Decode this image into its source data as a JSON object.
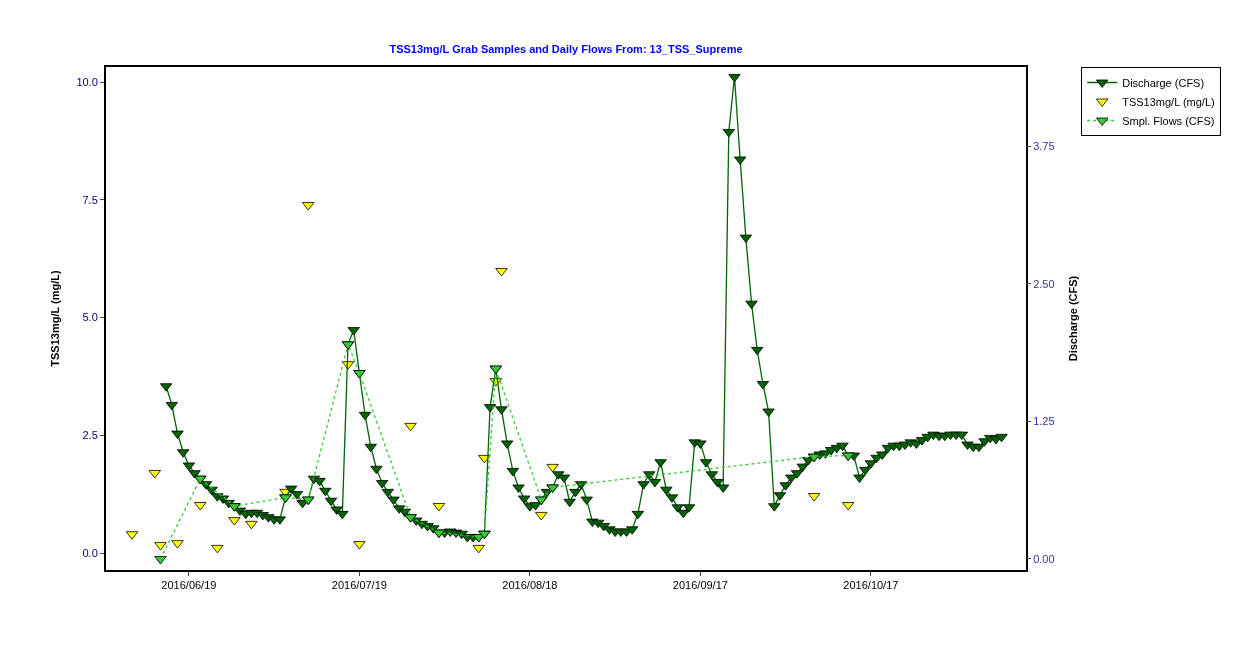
{
  "chart_data": {
    "type": "line",
    "title": "TSS13mg/L Grab Samples and Daily Flows From: 13_TSS_Supreme",
    "ylabel": "TSS13mg/L (mg/L)",
    "y2label": "Discharge (CFS)",
    "xlim": [
      "2016-06-04T10:00",
      "2016-11-13T07:00"
    ],
    "xticks": [
      {
        "value": "2016-06-19",
        "label": "2016/06/19"
      },
      {
        "value": "2016-07-19",
        "label": "2016/07/19"
      },
      {
        "value": "2016-08-18",
        "label": "2016/08/18"
      },
      {
        "value": "2016-09-17",
        "label": "2016/09/17"
      },
      {
        "value": "2016-10-17",
        "label": "2016/10/17"
      }
    ],
    "ylim": [
      -0.36,
      10.32
    ],
    "yticks": [
      {
        "value": 0,
        "label": "0.0"
      },
      {
        "value": 2.5,
        "label": "2.5"
      },
      {
        "value": 5,
        "label": "5.0"
      },
      {
        "value": 7.5,
        "label": "7.5"
      },
      {
        "value": 10,
        "label": "10.0"
      }
    ],
    "y2lim": [
      -0.1,
      4.47
    ],
    "y2ticks": [
      {
        "value": 0,
        "label": "0.00"
      },
      {
        "value": 1.25,
        "label": "1.25"
      },
      {
        "value": 2.5,
        "label": "2.50"
      },
      {
        "value": 3.75,
        "label": "3.75"
      }
    ],
    "legend": "top right",
    "marker": "triangle",
    "series": [
      {
        "name": "Discharge (CFS)",
        "axis": "y2",
        "color": "#006400",
        "line_style": "solid",
        "x": [
          "2016-06-15",
          "2016-06-16",
          "2016-06-17",
          "2016-06-18",
          "2016-06-19",
          "2016-06-20",
          "2016-06-21",
          "2016-06-22",
          "2016-06-23",
          "2016-06-24",
          "2016-06-25",
          "2016-06-26",
          "2016-06-27",
          "2016-06-28",
          "2016-06-29",
          "2016-06-30",
          "2016-07-01",
          "2016-07-02",
          "2016-07-03",
          "2016-07-04",
          "2016-07-05",
          "2016-07-06",
          "2016-07-07",
          "2016-07-08",
          "2016-07-09",
          "2016-07-10",
          "2016-07-11",
          "2016-07-12",
          "2016-07-13",
          "2016-07-14",
          "2016-07-15",
          "2016-07-16",
          "2016-07-17",
          "2016-07-18",
          "2016-07-19",
          "2016-07-20",
          "2016-07-21",
          "2016-07-22",
          "2016-07-23",
          "2016-07-24",
          "2016-07-25",
          "2016-07-26",
          "2016-07-27",
          "2016-07-28",
          "2016-07-29",
          "2016-07-30",
          "2016-07-31",
          "2016-08-01",
          "2016-08-02",
          "2016-08-03",
          "2016-08-04",
          "2016-08-05",
          "2016-08-06",
          "2016-08-07",
          "2016-08-08",
          "2016-08-09",
          "2016-08-10",
          "2016-08-11",
          "2016-08-12",
          "2016-08-13",
          "2016-08-14",
          "2016-08-15",
          "2016-08-16",
          "2016-08-17",
          "2016-08-18",
          "2016-08-19",
          "2016-08-20",
          "2016-08-21",
          "2016-08-22",
          "2016-08-23",
          "2016-08-24",
          "2016-08-25",
          "2016-08-26",
          "2016-08-27",
          "2016-08-28",
          "2016-08-29",
          "2016-08-30",
          "2016-08-31",
          "2016-09-01",
          "2016-09-02",
          "2016-09-03",
          "2016-09-04",
          "2016-09-05",
          "2016-09-06",
          "2016-09-07",
          "2016-09-08",
          "2016-09-09",
          "2016-09-10",
          "2016-09-11",
          "2016-09-12",
          "2016-09-13",
          "2016-09-14",
          "2016-09-15",
          "2016-09-16",
          "2016-09-17",
          "2016-09-18",
          "2016-09-19",
          "2016-09-20",
          "2016-09-21",
          "2016-09-22",
          "2016-09-23",
          "2016-09-24",
          "2016-09-25",
          "2016-09-26",
          "2016-09-27",
          "2016-09-28",
          "2016-09-29",
          "2016-09-30",
          "2016-10-01",
          "2016-10-02",
          "2016-10-03",
          "2016-10-04",
          "2016-10-05",
          "2016-10-06",
          "2016-10-07",
          "2016-10-08",
          "2016-10-09",
          "2016-10-10",
          "2016-10-11",
          "2016-10-12",
          "2016-10-13",
          "2016-10-14",
          "2016-10-15",
          "2016-10-16",
          "2016-10-17",
          "2016-10-18",
          "2016-10-19",
          "2016-10-20",
          "2016-10-21",
          "2016-10-22",
          "2016-10-23",
          "2016-10-24",
          "2016-10-25",
          "2016-10-26",
          "2016-10-27",
          "2016-10-28",
          "2016-10-29",
          "2016-10-30",
          "2016-10-31",
          "2016-11-01",
          "2016-11-02",
          "2016-11-03",
          "2016-11-04",
          "2016-11-05",
          "2016-11-06",
          "2016-11-07",
          "2016-11-08",
          "2016-11-09"
        ],
        "values": [
          1.57,
          1.4,
          1.14,
          0.97,
          0.85,
          0.78,
          0.73,
          0.68,
          0.63,
          0.57,
          0.55,
          0.51,
          0.48,
          0.44,
          0.41,
          0.42,
          0.42,
          0.4,
          0.38,
          0.36,
          0.36,
          0.56,
          0.64,
          0.59,
          0.51,
          0.54,
          0.73,
          0.71,
          0.62,
          0.53,
          0.45,
          0.41,
          1.95,
          2.08,
          1.69,
          1.31,
          1.02,
          0.82,
          0.69,
          0.61,
          0.54,
          0.46,
          0.43,
          0.38,
          0.35,
          0.32,
          0.3,
          0.28,
          0.24,
          0.24,
          0.25,
          0.24,
          0.23,
          0.2,
          0.2,
          0.2,
          0.23,
          1.38,
          1.73,
          1.36,
          1.05,
          0.8,
          0.65,
          0.55,
          0.48,
          0.49,
          0.54,
          0.61,
          0.65,
          0.77,
          0.74,
          0.52,
          0.61,
          0.68,
          0.54,
          0.34,
          0.33,
          0.3,
          0.27,
          0.25,
          0.25,
          0.25,
          0.27,
          0.41,
          0.68,
          0.77,
          0.7,
          0.88,
          0.63,
          0.56,
          0.47,
          0.42,
          0.47,
          1.06,
          1.05,
          0.88,
          0.77,
          0.7,
          0.65,
          3.88,
          4.38,
          3.63,
          2.92,
          2.32,
          1.9,
          1.59,
          1.34,
          0.48,
          0.58,
          0.67,
          0.74,
          0.78,
          0.84,
          0.9,
          0.93,
          0.95,
          0.96,
          0.99,
          1.01,
          1.03,
          0.94,
          0.94,
          0.74,
          0.81,
          0.87,
          0.92,
          0.95,
          1.01,
          1.03,
          1.03,
          1.04,
          1.06,
          1.05,
          1.08,
          1.11,
          1.13,
          1.12,
          1.12,
          1.13,
          1.13,
          1.13,
          1.04,
          1.02,
          1.02,
          1.07,
          1.1,
          1.09,
          1.11
        ]
      },
      {
        "name": "TSS13mg/L (mg/L)",
        "type": "scatter",
        "axis": "y",
        "color": "#ffff00",
        "x": [
          "2016-06-09",
          "2016-06-13",
          "2016-06-14",
          "2016-06-17",
          "2016-06-21",
          "2016-06-24",
          "2016-06-27",
          "2016-06-30",
          "2016-07-06",
          "2016-07-10",
          "2016-07-17",
          "2016-07-19",
          "2016-07-28",
          "2016-08-02",
          "2016-08-09",
          "2016-08-10",
          "2016-08-12",
          "2016-08-13",
          "2016-08-20",
          "2016-08-22",
          "2016-10-07",
          "2016-10-13"
        ],
        "values": [
          0.4,
          1.7,
          0.17,
          0.21,
          1.02,
          0.11,
          0.7,
          0.62,
          1.3,
          7.39,
          4.01,
          0.19,
          2.7,
          1.0,
          0.11,
          2.02,
          3.65,
          5.99,
          0.81,
          1.83,
          1.21,
          1.02
        ]
      },
      {
        "name": "Smpl. Flows (CFS)",
        "axis": "y2",
        "color": "#33cc33",
        "line_style": "dotted",
        "x": [
          "2016-06-14",
          "2016-06-21",
          "2016-06-27",
          "2016-07-06",
          "2016-07-10",
          "2016-07-17",
          "2016-07-19",
          "2016-07-28",
          "2016-08-02",
          "2016-08-09",
          "2016-08-10",
          "2016-08-12",
          "2016-08-20",
          "2016-08-22",
          "2016-10-07",
          "2016-10-13"
        ],
        "values": [
          0.0,
          0.73,
          0.48,
          0.56,
          0.54,
          1.95,
          1.69,
          0.38,
          0.24,
          0.2,
          0.23,
          1.73,
          0.54,
          0.65,
          0.93,
          0.94
        ]
      }
    ]
  }
}
